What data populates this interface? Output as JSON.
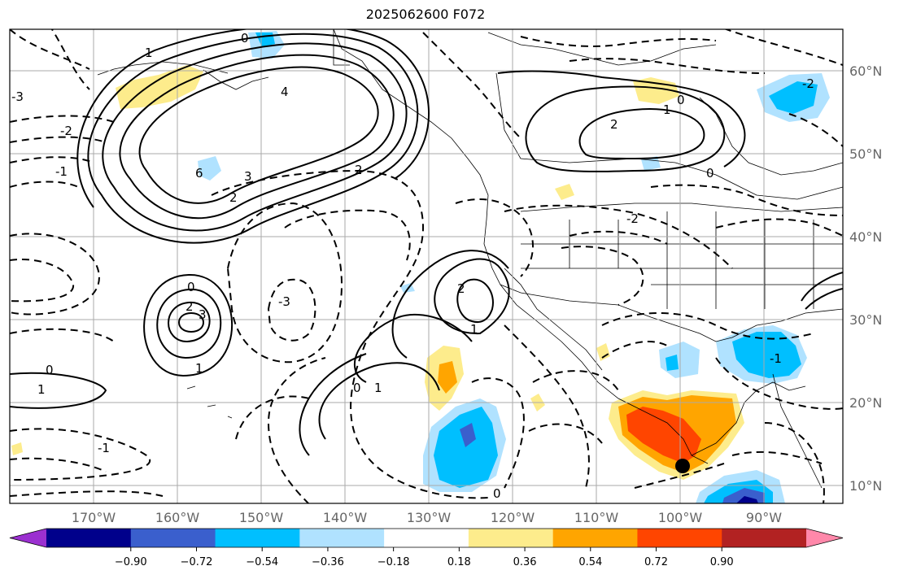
{
  "title": "2025062600 F072",
  "map": {
    "lat_labels": [
      "60°N",
      "50°N",
      "40°N",
      "30°N",
      "20°N",
      "10°N"
    ],
    "lon_labels": [
      "170°W",
      "160°W",
      "150°W",
      "140°W",
      "130°W",
      "120°W",
      "110°W",
      "100°W",
      "90°W"
    ],
    "grid": true,
    "land_color": "#ffffff",
    "coastline_color": "#000000",
    "marker_color": "#000000"
  },
  "colorbar": {
    "colors": [
      "#9b30d0",
      "#00008b",
      "#3a5fcd",
      "#00bfff",
      "#b0e2ff",
      "#ffffff",
      "#fdec8c",
      "#ffa500",
      "#ff4500",
      "#b22222",
      "#ff88aa"
    ],
    "tick_labels": [
      "−0.90",
      "−0.72",
      "−0.54",
      "−0.36",
      "−0.18",
      "0.18",
      "0.36",
      "0.54",
      "0.72",
      "0.90"
    ]
  },
  "contour_labels": {
    "alaska_high": [
      "4",
      "3",
      "2",
      "6",
      "1"
    ],
    "subtropical": [
      "0",
      "2",
      "1",
      "3"
    ],
    "canada": [
      "2",
      "1",
      "0"
    ],
    "misc": [
      "-2",
      "-1",
      "-3",
      "2",
      "0"
    ]
  }
}
